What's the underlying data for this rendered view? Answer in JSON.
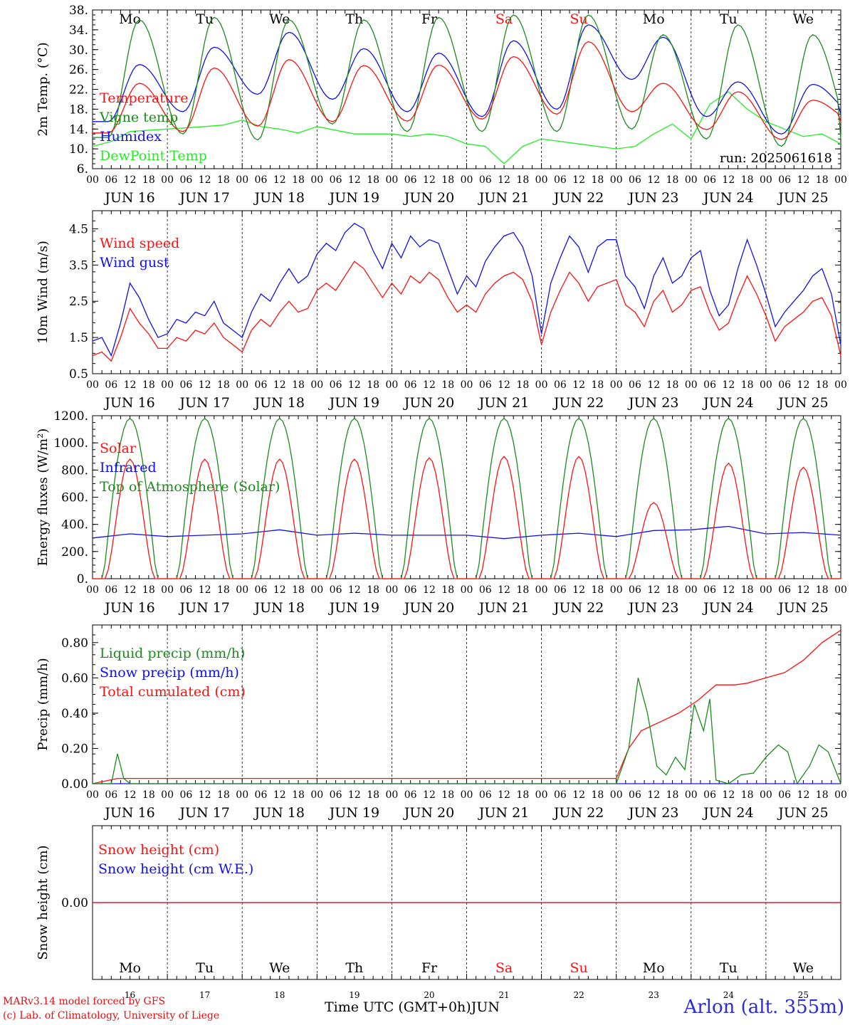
{
  "chart_data": {
    "type": "line",
    "time_axis": {
      "days": [
        "JUN 16",
        "JUN 17",
        "JUN 18",
        "JUN 19",
        "JUN 20",
        "JUN 21",
        "JUN 22",
        "JUN 23",
        "JUN 24",
        "JUN 25"
      ],
      "weekdays": [
        "Mo",
        "Tu",
        "We",
        "Th",
        "Fr",
        "Sa",
        "Su",
        "Mo",
        "Tu",
        "We"
      ],
      "weekend_days": [
        "Sa",
        "Su"
      ],
      "hour_ticks": [
        "00",
        "06",
        "12",
        "18"
      ],
      "day_numbers": [
        "16",
        "17",
        "18",
        "19",
        "20",
        "21",
        "22",
        "23",
        "24",
        "25"
      ],
      "xlabel": "Time UTC (GMT+0h)",
      "month": "JUN"
    },
    "panels": [
      {
        "id": "temp",
        "ylabel": "2m Temp. (°C)",
        "ylim": [
          6,
          38
        ],
        "yticks": [
          "6.",
          "10.",
          "14.",
          "18.",
          "22.",
          "26.",
          "30.",
          "34.",
          "38."
        ],
        "run_label": "run: 2025061618",
        "series": [
          {
            "name": "Temperature",
            "color": "#ff1010",
            "kind": "diurnal",
            "min": [
              13.2,
              13.5,
              14.6,
              15.5,
              15.6,
              16.0,
              17.0,
              17.5,
              13.9,
              11.9,
              15.5
            ],
            "max": [
              23.2,
              26.3,
              28.0,
              26.8,
              26.9,
              28.6,
              31.6,
              23.2,
              21.5,
              19.8
            ]
          },
          {
            "name": "Vigne temp",
            "color": "#1a8c1a",
            "kind": "diurnal",
            "min": [
              12.3,
              13.0,
              11.8,
              15.0,
              13.5,
              13.5,
              13.5,
              14.0,
              12.0,
              10.5,
              12.0
            ],
            "max": [
              36.0,
              36.5,
              36.0,
              36.0,
              36.5,
              37.0,
              37.0,
              33.0,
              35.0,
              33.0
            ]
          },
          {
            "name": "Humidex",
            "color": "#1010ee",
            "kind": "diurnal",
            "min": [
              15.5,
              17.5,
              21.0,
              20.0,
              17.5,
              16.5,
              18.0,
              24.0,
              16.5,
              13.0,
              17.0
            ],
            "max": [
              27.0,
              30.5,
              33.5,
              30.2,
              29.3,
              31.8,
              35.0,
              32.5,
              23.5,
              23.0
            ]
          },
          {
            "name": "DewPoint Temp",
            "color": "#22ee22",
            "kind": "points",
            "t": [
              0,
              6,
              12,
              24,
              36,
              42,
              48,
              54,
              60,
              66,
              72,
              84,
              96,
              102,
              108,
              114,
              120,
              126,
              132,
              138,
              144,
              156,
              168,
              174,
              180,
              186,
              192,
              198,
              204,
              210,
              216,
              222,
              228,
              234,
              240
            ],
            "v": [
              10.5,
              11.5,
              13.5,
              14.0,
              14.5,
              14.8,
              15.8,
              14.5,
              14.0,
              13.2,
              14.5,
              13.0,
              13.0,
              12.5,
              13.0,
              12.5,
              11.0,
              10.5,
              7.0,
              10.5,
              12.0,
              11.0,
              10.0,
              10.5,
              13.0,
              15.0,
              12.0,
              19.0,
              21.5,
              18.0,
              15.5,
              14.0,
              12.5,
              13.0,
              11.0
            ]
          }
        ]
      },
      {
        "id": "wind",
        "ylabel": "10m Wind (m/s)",
        "ylim": [
          0.5,
          5.0
        ],
        "yticks": [
          "0.5",
          "1.5",
          "2.5",
          "3.5",
          "4.5"
        ],
        "series": [
          {
            "name": "Wind speed",
            "color": "#ff1010",
            "kind": "points",
            "t": [
              0,
              3,
              6,
              9,
              12,
              15,
              18,
              21,
              24,
              27,
              30,
              33,
              36,
              39,
              42,
              45,
              48,
              51,
              54,
              57,
              60,
              63,
              66,
              69,
              72,
              75,
              78,
              81,
              84,
              87,
              90,
              93,
              96,
              99,
              102,
              105,
              108,
              111,
              114,
              117,
              120,
              123,
              126,
              129,
              132,
              135,
              138,
              141,
              144,
              147,
              150,
              153,
              156,
              159,
              162,
              165,
              168,
              171,
              174,
              177,
              180,
              183,
              186,
              189,
              192,
              195,
              198,
              201,
              204,
              207,
              210,
              213,
              216,
              219,
              222,
              225,
              228,
              231,
              234,
              237,
              240
            ],
            "v": [
              1.0,
              1.1,
              0.85,
              1.5,
              2.3,
              1.9,
              1.6,
              1.2,
              1.2,
              1.5,
              1.4,
              1.7,
              1.6,
              1.9,
              1.5,
              1.3,
              1.1,
              1.7,
              2.0,
              1.8,
              2.2,
              2.5,
              2.2,
              2.3,
              2.8,
              3.0,
              2.8,
              3.2,
              3.6,
              3.4,
              3.0,
              2.6,
              3.0,
              2.7,
              3.2,
              3.0,
              3.3,
              3.1,
              2.6,
              2.2,
              2.4,
              2.2,
              2.7,
              3.0,
              3.2,
              3.3,
              3.1,
              2.5,
              1.3,
              2.2,
              2.8,
              3.3,
              3.0,
              2.5,
              2.9,
              3.0,
              3.1,
              2.4,
              2.2,
              1.8,
              2.5,
              2.8,
              2.2,
              2.4,
              2.8,
              2.9,
              2.2,
              1.7,
              1.9,
              2.6,
              3.2,
              2.7,
              2.1,
              1.4,
              1.8,
              2.0,
              2.2,
              2.5,
              2.6,
              2.1,
              1.0
            ]
          },
          {
            "name": "Wind gust",
            "color": "#1010ee",
            "kind": "points",
            "t": [
              0,
              3,
              6,
              9,
              12,
              15,
              18,
              21,
              24,
              27,
              30,
              33,
              36,
              39,
              42,
              45,
              48,
              51,
              54,
              57,
              60,
              63,
              66,
              69,
              72,
              75,
              78,
              81,
              84,
              87,
              90,
              93,
              96,
              99,
              102,
              105,
              108,
              111,
              114,
              117,
              120,
              123,
              126,
              129,
              132,
              135,
              138,
              141,
              144,
              147,
              150,
              153,
              156,
              159,
              162,
              165,
              168,
              171,
              174,
              177,
              180,
              183,
              186,
              189,
              192,
              195,
              198,
              201,
              204,
              207,
              210,
              213,
              216,
              219,
              222,
              225,
              228,
              231,
              234,
              237,
              240
            ],
            "v": [
              1.4,
              1.5,
              1.0,
              1.9,
              3.0,
              2.6,
              2.0,
              1.5,
              1.6,
              2.0,
              1.9,
              2.2,
              2.1,
              2.5,
              1.9,
              1.7,
              1.5,
              2.2,
              2.7,
              2.5,
              3.0,
              3.4,
              3.0,
              3.2,
              3.8,
              4.1,
              3.9,
              4.4,
              4.65,
              4.5,
              3.9,
              3.4,
              4.1,
              3.7,
              4.3,
              4.0,
              4.2,
              4.1,
              3.4,
              2.7,
              3.2,
              2.9,
              3.6,
              4.0,
              4.3,
              4.4,
              4.0,
              3.2,
              1.6,
              3.0,
              3.7,
              4.3,
              4.0,
              3.3,
              4.0,
              4.2,
              4.2,
              3.2,
              2.9,
              2.3,
              3.2,
              3.7,
              3.0,
              3.2,
              3.7,
              3.9,
              2.8,
              2.1,
              2.4,
              3.4,
              4.2,
              3.5,
              2.7,
              1.8,
              2.2,
              2.5,
              2.8,
              3.2,
              3.4,
              2.7,
              1.3
            ]
          }
        ]
      },
      {
        "id": "energy",
        "ylabel": "Energy fluxes (W/m²)",
        "ylim": [
          0,
          1200
        ],
        "yticks": [
          "0.",
          "200.",
          "400.",
          "600.",
          "800.",
          "1000.",
          "1200."
        ],
        "series": [
          {
            "name": "Solar",
            "color": "#ff1010",
            "kind": "solar",
            "peaks": [
              880,
              880,
              880,
              880,
              890,
              900,
              900,
              560,
              850,
              820
            ]
          },
          {
            "name": "Infrared",
            "color": "#1010ee",
            "kind": "points",
            "t": [
              0,
              12,
              24,
              36,
              48,
              60,
              72,
              84,
              96,
              108,
              120,
              132,
              144,
              156,
              168,
              180,
              192,
              204,
              216,
              228,
              240
            ],
            "v": [
              300,
              330,
              310,
              320,
              330,
              360,
              320,
              335,
              320,
              320,
              320,
              295,
              320,
              335,
              310,
              355,
              360,
              385,
              330,
              340,
              320
            ]
          },
          {
            "name": "Top of Atmosphere (Solar)",
            "color": "#1a8c1a",
            "kind": "toa",
            "peak": 1180
          }
        ]
      },
      {
        "id": "precip",
        "ylabel": "Precip (mm/h)",
        "ylim": [
          0,
          0.9
        ],
        "yticks": [
          "0.00",
          "0.20",
          "0.40",
          "0.60",
          "0.80"
        ],
        "series": [
          {
            "name": "Liquid precip (mm/h)",
            "color": "#1a8c1a",
            "kind": "points",
            "t": [
              0,
              6,
              8,
              10,
              12,
              168,
              172,
              175,
              178,
              181,
              184,
              187,
              190,
              193,
              196,
              198,
              200,
              204,
              208,
              212,
              216,
              220,
              223,
              226,
              230,
              233,
              236,
              240
            ],
            "v": [
              0,
              0,
              0.17,
              0.03,
              0,
              0,
              0.2,
              0.6,
              0.4,
              0.1,
              0.05,
              0.15,
              0.08,
              0.45,
              0.3,
              0.48,
              0.02,
              0,
              0.05,
              0.06,
              0.15,
              0.22,
              0.18,
              0,
              0.1,
              0.22,
              0.18,
              0
            ]
          },
          {
            "name": "Snow precip (mm/h)",
            "color": "#1010ee",
            "kind": "points",
            "t": [
              0,
              240
            ],
            "v": [
              0,
              0
            ]
          },
          {
            "name": "Total cumulated (cm)",
            "color": "#ff1010",
            "kind": "points",
            "t": [
              0,
              8,
              12,
              168,
              172,
              176,
              182,
              188,
              194,
              200,
              206,
              210,
              216,
              222,
              228,
              234,
              240
            ],
            "v": [
              0,
              0.03,
              0.03,
              0.03,
              0.2,
              0.3,
              0.35,
              0.4,
              0.47,
              0.56,
              0.56,
              0.57,
              0.6,
              0.63,
              0.7,
              0.8,
              0.87
            ]
          }
        ]
      },
      {
        "id": "snow",
        "ylabel": "Snow height (cm)",
        "ylim": [
          -1,
          1
        ],
        "yticks": [
          "0.00"
        ],
        "series": [
          {
            "name": "Snow height (cm)",
            "color": "#ff1010",
            "kind": "points",
            "t": [
              0,
              240
            ],
            "v": [
              0,
              0
            ]
          },
          {
            "name": "Snow height (cm W.E.)",
            "color": "#1010ee",
            "kind": "points",
            "t": [
              0,
              240
            ],
            "v": [
              0,
              0
            ]
          }
        ]
      }
    ],
    "grid": "vertical dashed at day boundaries"
  },
  "footer": {
    "credit_line1": "MARv3.14 model forced by GFS",
    "credit_line2": "(c) Lab. of Climatology, University of Liege",
    "station": "Arlon (alt. 355m)"
  },
  "colors": {
    "weekend": "#ff1010",
    "text": "#000000",
    "station": "#2a2ae0"
  }
}
